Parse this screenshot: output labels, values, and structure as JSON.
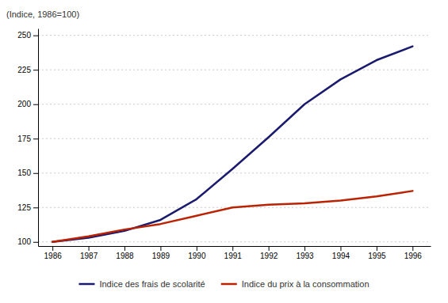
{
  "chart_data": {
    "type": "line",
    "ylabel": "(Indice, 1986=100)",
    "x": [
      1986,
      1987,
      1988,
      1989,
      1990,
      1991,
      1992,
      1993,
      1994,
      1995,
      1996
    ],
    "series": [
      {
        "name": "Indice des frais de scolarité",
        "color": "#1a1a6e",
        "values": [
          100,
          103,
          108,
          116,
          131,
          153,
          176,
          200,
          218,
          232,
          242
        ]
      },
      {
        "name": "Indice du prix à la consommation",
        "color": "#bb2200",
        "values": [
          100,
          104,
          109,
          113,
          119,
          125,
          127,
          128,
          130,
          133,
          137
        ]
      }
    ],
    "xlim": [
      1985.6,
      1996.5
    ],
    "xticks": [
      1986,
      1987,
      1988,
      1989,
      1990,
      1991,
      1992,
      1993,
      1994,
      1995,
      1996
    ],
    "ylim": [
      97,
      255
    ],
    "yticks": [
      100,
      125,
      150,
      175,
      200,
      225,
      250
    ],
    "grid": true,
    "legend": "bottom"
  }
}
